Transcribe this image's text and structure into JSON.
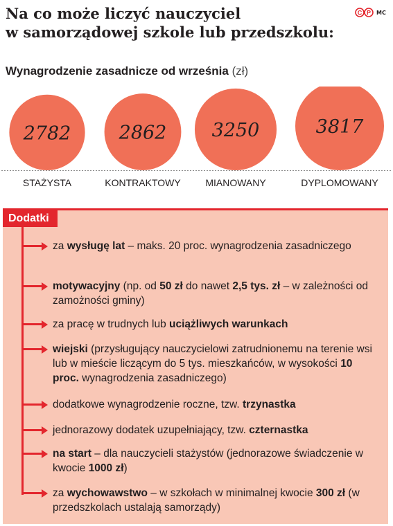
{
  "header": {
    "title_lines": [
      "Na co może liczyć nauczyciel",
      "w samorządowej szkole lub przedszkolu:"
    ],
    "logo": "cp-logo",
    "credit": "MC"
  },
  "chart_data": {
    "type": "bar",
    "title": "Wynagrodzenie zasadnicze od września",
    "unit": "(zł)",
    "categories": [
      "STAŻYSTA",
      "KONTRAKTOWY",
      "MIANOWANY",
      "DYPLOMOWANY"
    ],
    "values": [
      2782,
      2862,
      3250,
      3817
    ],
    "value_labels": [
      "2782",
      "2862",
      "3250",
      "3817"
    ],
    "encoding": "circle-area",
    "colors": {
      "circle": "#f07057",
      "text": "#231f20"
    }
  },
  "dodatki": {
    "label": "Dodatki",
    "items": [
      {
        "parts": [
          {
            "t": "za ",
            "b": false
          },
          {
            "t": "wysługę lat",
            "b": true
          },
          {
            "t": " – maks. 20 proc. wynagrodzenia zasadniczego",
            "b": false
          }
        ]
      },
      {
        "parts": [
          {
            "t": "motywacyjny",
            "b": true
          },
          {
            "t": " (np. od ",
            "b": false
          },
          {
            "t": "50 zł",
            "b": true
          },
          {
            "t": " do nawet ",
            "b": false
          },
          {
            "t": "2,5 tys. zł",
            "b": true
          },
          {
            "t": " – w zależności od zamożności gminy)",
            "b": false
          }
        ]
      },
      {
        "parts": [
          {
            "t": "za pracę w trudnych lub ",
            "b": false
          },
          {
            "t": "uciążliwych warunkach",
            "b": true
          }
        ]
      },
      {
        "parts": [
          {
            "t": "wiejski",
            "b": true
          },
          {
            "t": " (przysługujący nauczycielowi zatrudnionemu na terenie wsi lub w mieście liczącym do 5 tys. mieszkańców, w wysokości ",
            "b": false
          },
          {
            "t": "10 proc.",
            "b": true
          },
          {
            "t": " wynagrodzenia zasadniczego)",
            "b": false
          }
        ]
      },
      {
        "parts": [
          {
            "t": "dodatkowe wynagrodzenie roczne, tzw. ",
            "b": false
          },
          {
            "t": "trzynastka",
            "b": true
          }
        ]
      },
      {
        "parts": [
          {
            "t": "jednorazowy dodatek uzupełniający, tzw. ",
            "b": false
          },
          {
            "t": "czternastka",
            "b": true
          }
        ]
      },
      {
        "parts": [
          {
            "t": "na start",
            "b": true
          },
          {
            "t": " – dla nauczycieli stażystów (jednorazowe świadczenie w kwocie ",
            "b": false
          },
          {
            "t": "1000 zł",
            "b": true
          },
          {
            "t": ")",
            "b": false
          }
        ]
      },
      {
        "parts": [
          {
            "t": "za ",
            "b": false
          },
          {
            "t": "wychowawstwo",
            "b": true
          },
          {
            "t": " – w szkołach w minimalnej kwocie ",
            "b": false
          },
          {
            "t": "300 zł",
            "b": true
          },
          {
            "t": " (w przedszkolach ustalają samorządy)",
            "b": false
          }
        ]
      }
    ]
  }
}
